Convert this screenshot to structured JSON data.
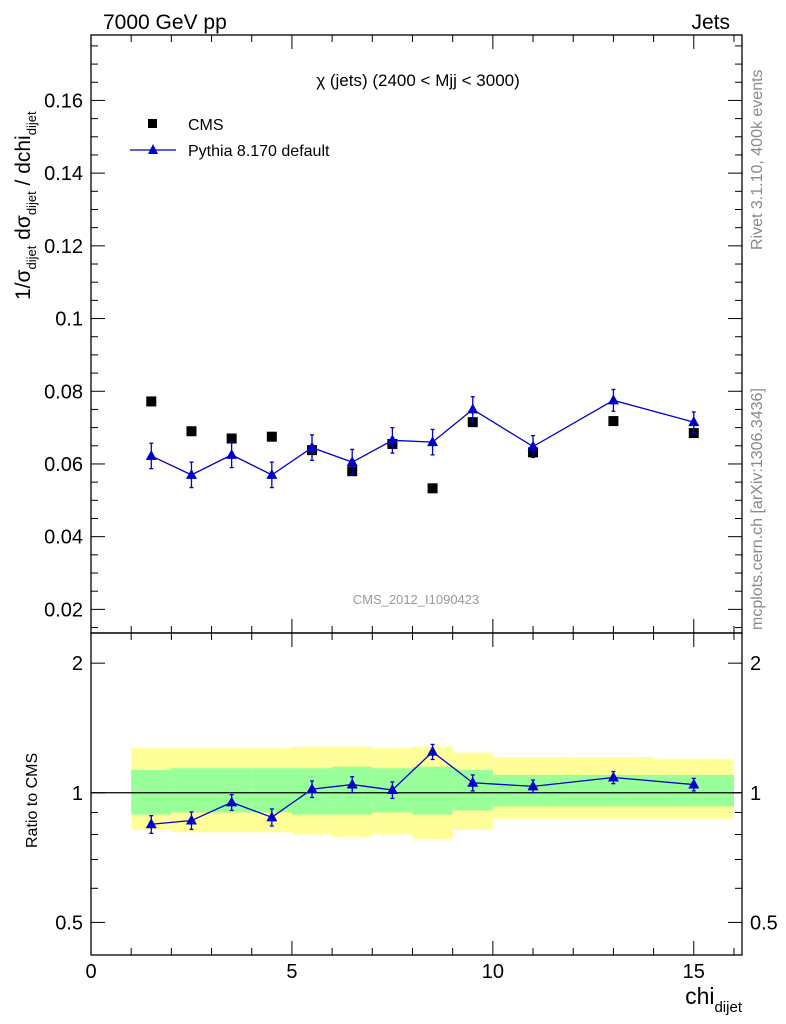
{
  "header": {
    "left": "7000 GeV pp",
    "right": "Jets"
  },
  "side_labels": {
    "rivet": "Rivet 3.1.10,  400k events",
    "mcplots": "mcplots.cern.ch [arXiv:1306.3436]"
  },
  "plot_title": "χ (jets) (2400 < Mjj < 3000)",
  "analysis_id": "CMS_2012_I1090423",
  "colors": {
    "data": "#000000",
    "mc": "#0000cc",
    "band_outer": "#ffff99",
    "band_inner": "#99ff99"
  },
  "chart_data": [
    {
      "type": "scatter",
      "panel": "main",
      "ylabel": {
        "main": "1/σ",
        "sub1": "dijet",
        "mid": " dσ",
        "sub2": "dijet",
        "mid2": " / dchi",
        "sub3": "dijet"
      },
      "xlim": [
        0,
        16.2
      ],
      "ylim": [
        0.0135,
        0.178
      ],
      "yticks": [
        0.02,
        0.04,
        0.06,
        0.08,
        0.1,
        0.12,
        0.14,
        0.16
      ],
      "ytick_labels": [
        "0.02",
        "0.04",
        "0.06",
        "0.08",
        "0.1",
        "0.12",
        "0.14",
        "0.16"
      ],
      "legend_position": "top-left",
      "series": [
        {
          "name": "CMS",
          "marker": "square",
          "x": [
            1.5,
            2.5,
            3.5,
            4.5,
            5.5,
            6.5,
            7.5,
            8.5,
            9.5,
            11,
            13,
            15
          ],
          "y": [
            0.0772,
            0.069,
            0.067,
            0.0675,
            0.0638,
            0.058,
            0.0655,
            0.0533,
            0.0715,
            0.0632,
            0.0718,
            0.0685
          ]
        },
        {
          "name": "Pythia 8.170 default",
          "marker": "triangle",
          "x": [
            1.5,
            2.5,
            3.5,
            4.5,
            5.5,
            6.5,
            7.5,
            8.5,
            9.5,
            11,
            13,
            15
          ],
          "y": [
            0.0622,
            0.057,
            0.0625,
            0.057,
            0.0645,
            0.0605,
            0.0665,
            0.066,
            0.075,
            0.0648,
            0.0775,
            0.0715
          ],
          "yerr": [
            0.0035,
            0.0035,
            0.0035,
            0.0035,
            0.0035,
            0.0035,
            0.0035,
            0.0035,
            0.0035,
            0.003,
            0.003,
            0.0028
          ]
        }
      ]
    },
    {
      "type": "scatter",
      "panel": "ratio",
      "ylabel": "Ratio to CMS",
      "xlabel": {
        "main": "chi",
        "sub": "dijet"
      },
      "xlim": [
        0,
        16.2
      ],
      "ylim": [
        0.42,
        2.35
      ],
      "log_y": true,
      "xticks": [
        0,
        5,
        10,
        15
      ],
      "xtick_labels": [
        "0",
        "5",
        "10",
        "15"
      ],
      "yticks": [
        0.5,
        1,
        2
      ],
      "ytick_labels": [
        "0.5",
        "1",
        "2"
      ],
      "reference_line": 1,
      "bands": {
        "x_edges": [
          1,
          2,
          3,
          4,
          5,
          6,
          7,
          8,
          9,
          10,
          12,
          14,
          16
        ],
        "outer_low": [
          0.82,
          0.81,
          0.81,
          0.81,
          0.8,
          0.79,
          0.8,
          0.78,
          0.82,
          0.87,
          0.87,
          0.87
        ],
        "outer_high": [
          1.27,
          1.27,
          1.27,
          1.27,
          1.28,
          1.28,
          1.27,
          1.28,
          1.24,
          1.21,
          1.21,
          1.2
        ],
        "inner_low": [
          0.89,
          0.9,
          0.9,
          0.9,
          0.89,
          0.89,
          0.9,
          0.89,
          0.91,
          0.93,
          0.93,
          0.93
        ],
        "inner_high": [
          1.13,
          1.14,
          1.14,
          1.14,
          1.14,
          1.15,
          1.14,
          1.15,
          1.13,
          1.1,
          1.1,
          1.1
        ]
      },
      "series": [
        {
          "name": "Pythia 8.170 default",
          "x": [
            1.5,
            2.5,
            3.5,
            4.5,
            5.5,
            6.5,
            7.5,
            8.5,
            9.5,
            11,
            13,
            15
          ],
          "y": [
            0.845,
            0.862,
            0.95,
            0.877,
            1.02,
            1.045,
            1.015,
            1.245,
            1.055,
            1.035,
            1.085,
            1.045
          ],
          "yerr": [
            0.04,
            0.04,
            0.04,
            0.04,
            0.045,
            0.045,
            0.045,
            0.05,
            0.045,
            0.035,
            0.035,
            0.035
          ]
        }
      ]
    }
  ]
}
